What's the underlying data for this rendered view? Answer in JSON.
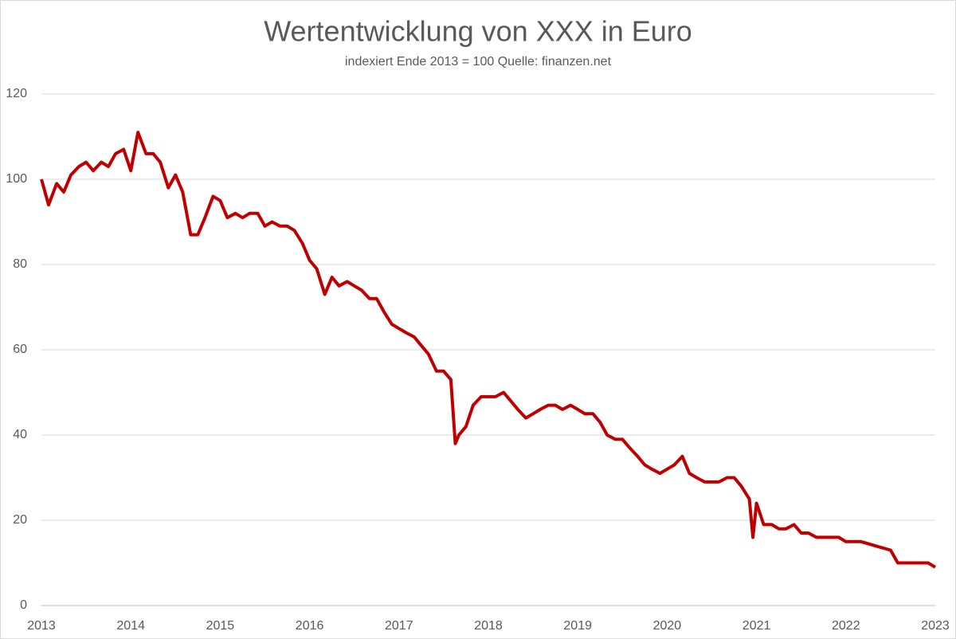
{
  "chart_data": {
    "type": "line",
    "title": "Wertentwicklung von XXX in Euro",
    "subtitle": "indexiert Ende 2013 = 100 Quelle: finanzen.net",
    "x": [
      2013,
      2013.08,
      2013.17,
      2013.25,
      2013.33,
      2013.42,
      2013.5,
      2013.58,
      2013.67,
      2013.75,
      2013.83,
      2013.92,
      2014,
      2014.08,
      2014.17,
      2014.25,
      2014.33,
      2014.42,
      2014.5,
      2014.58,
      2014.67,
      2014.75,
      2014.83,
      2014.92,
      2015,
      2015.08,
      2015.17,
      2015.25,
      2015.33,
      2015.42,
      2015.5,
      2015.58,
      2015.67,
      2015.75,
      2015.83,
      2015.92,
      2016,
      2016.08,
      2016.17,
      2016.25,
      2016.33,
      2016.42,
      2016.5,
      2016.58,
      2016.67,
      2016.75,
      2016.83,
      2016.92,
      2017,
      2017.08,
      2017.17,
      2017.25,
      2017.33,
      2017.42,
      2017.5,
      2017.58,
      2017.63,
      2017.67,
      2017.75,
      2017.83,
      2017.92,
      2018,
      2018.08,
      2018.17,
      2018.25,
      2018.33,
      2018.42,
      2018.5,
      2018.58,
      2018.67,
      2018.75,
      2018.83,
      2018.92,
      2019,
      2019.08,
      2019.17,
      2019.25,
      2019.33,
      2019.42,
      2019.5,
      2019.58,
      2019.67,
      2019.75,
      2019.83,
      2019.92,
      2020,
      2020.08,
      2020.17,
      2020.25,
      2020.33,
      2020.42,
      2020.5,
      2020.58,
      2020.67,
      2020.75,
      2020.83,
      2020.92,
      2020.96,
      2021,
      2021.08,
      2021.17,
      2021.25,
      2021.33,
      2021.42,
      2021.5,
      2021.58,
      2021.67,
      2021.75,
      2021.83,
      2021.92,
      2022,
      2022.17,
      2022.33,
      2022.5,
      2022.58,
      2022.75,
      2022.92,
      2023
    ],
    "series": [
      {
        "color": "#c00000",
        "values": [
          100,
          94,
          99,
          97,
          101,
          103,
          104,
          102,
          104,
          103,
          106,
          107,
          102,
          111,
          106,
          106,
          104,
          98,
          101,
          97,
          87,
          87,
          91,
          96,
          95,
          91,
          92,
          91,
          92,
          92,
          89,
          90,
          89,
          89,
          88,
          85,
          81,
          79,
          73,
          77,
          75,
          76,
          75,
          74,
          72,
          72,
          69,
          66,
          65,
          64,
          63,
          61,
          59,
          55,
          55,
          53,
          38,
          40,
          42,
          47,
          49,
          49,
          49,
          50,
          48,
          46,
          44,
          45,
          46,
          47,
          47,
          46,
          47,
          46,
          45,
          45,
          43,
          40,
          39,
          39,
          37,
          35,
          33,
          32,
          31,
          32,
          33,
          35,
          31,
          30,
          29,
          29,
          29,
          30,
          30,
          28,
          25,
          16,
          24,
          19,
          19,
          18,
          18,
          19,
          17,
          17,
          16,
          16,
          16,
          16,
          15,
          15,
          14,
          13,
          10,
          10,
          10,
          9
        ]
      }
    ],
    "xlim": [
      2013,
      2023
    ],
    "xticks": [
      2013,
      2014,
      2015,
      2016,
      2017,
      2018,
      2019,
      2020,
      2021,
      2022,
      2023
    ],
    "ylim": [
      0,
      120
    ],
    "yticks": [
      0,
      20,
      40,
      60,
      80,
      100,
      120
    ],
    "grid": true
  }
}
